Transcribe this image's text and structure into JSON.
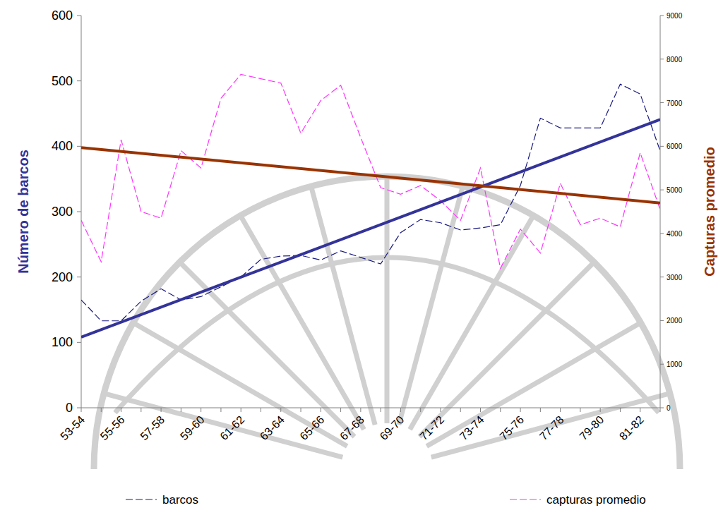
{
  "chart_data": {
    "type": "line",
    "categories": [
      "53-54",
      null,
      "55-56",
      null,
      "57-58",
      null,
      "59-60",
      null,
      "61-62",
      null,
      "63-64",
      null,
      "65-66",
      null,
      "67-68",
      null,
      "69-70",
      null,
      "71-72",
      null,
      "73-74",
      null,
      "75-76",
      null,
      "77-78",
      null,
      "79-80",
      null,
      "81-82",
      null
    ],
    "y_label": "Número de barcos",
    "y2_label": "Capturas promedio",
    "ylim": [
      0,
      600
    ],
    "yticks": [
      0,
      100,
      200,
      300,
      400,
      500,
      600
    ],
    "y2lim": [
      0,
      9000
    ],
    "y2ticks": [
      0,
      1000,
      2000,
      3000,
      4000,
      5000,
      6000,
      7000,
      8000,
      9000
    ],
    "legend": "bottom",
    "series": [
      {
        "name": "barcos",
        "color": "#1a1a80",
        "line_style": "dashed",
        "values": [
          165,
          133,
          133,
          163,
          182,
          165,
          170,
          185,
          200,
          227,
          232,
          233,
          226,
          240,
          230,
          220,
          268,
          288,
          283,
          272,
          275,
          280,
          340,
          443,
          428,
          428,
          428,
          495,
          480,
          393
        ]
      },
      {
        "name": "capturas promedio",
        "color": "#ff33ff",
        "line_style": "dashed",
        "axis": "y2",
        "values": [
          4300,
          3350,
          6150,
          4500,
          4350,
          5900,
          5500,
          7100,
          7650,
          7550,
          7450,
          6300,
          7050,
          7400,
          6200,
          5050,
          4900,
          5100,
          4750,
          4300,
          5500,
          3200,
          4100,
          3550,
          5150,
          4200,
          4350,
          4150,
          5850,
          4550
        ]
      },
      {
        "type": "trend",
        "color": "#333399",
        "line_style": "solid",
        "values": [
          108,
          null,
          null,
          null,
          null,
          null,
          null,
          null,
          null,
          null,
          null,
          null,
          null,
          null,
          null,
          null,
          null,
          null,
          null,
          null,
          null,
          null,
          null,
          null,
          null,
          null,
          null,
          null,
          null,
          441
        ]
      },
      {
        "type": "trend",
        "color": "#993300",
        "line_style": "solid",
        "axis": "y2",
        "values": [
          5970,
          null,
          null,
          null,
          null,
          null,
          null,
          null,
          null,
          null,
          null,
          null,
          null,
          null,
          null,
          null,
          null,
          null,
          null,
          null,
          null,
          null,
          null,
          null,
          null,
          null,
          null,
          null,
          null,
          4700
        ]
      }
    ]
  }
}
